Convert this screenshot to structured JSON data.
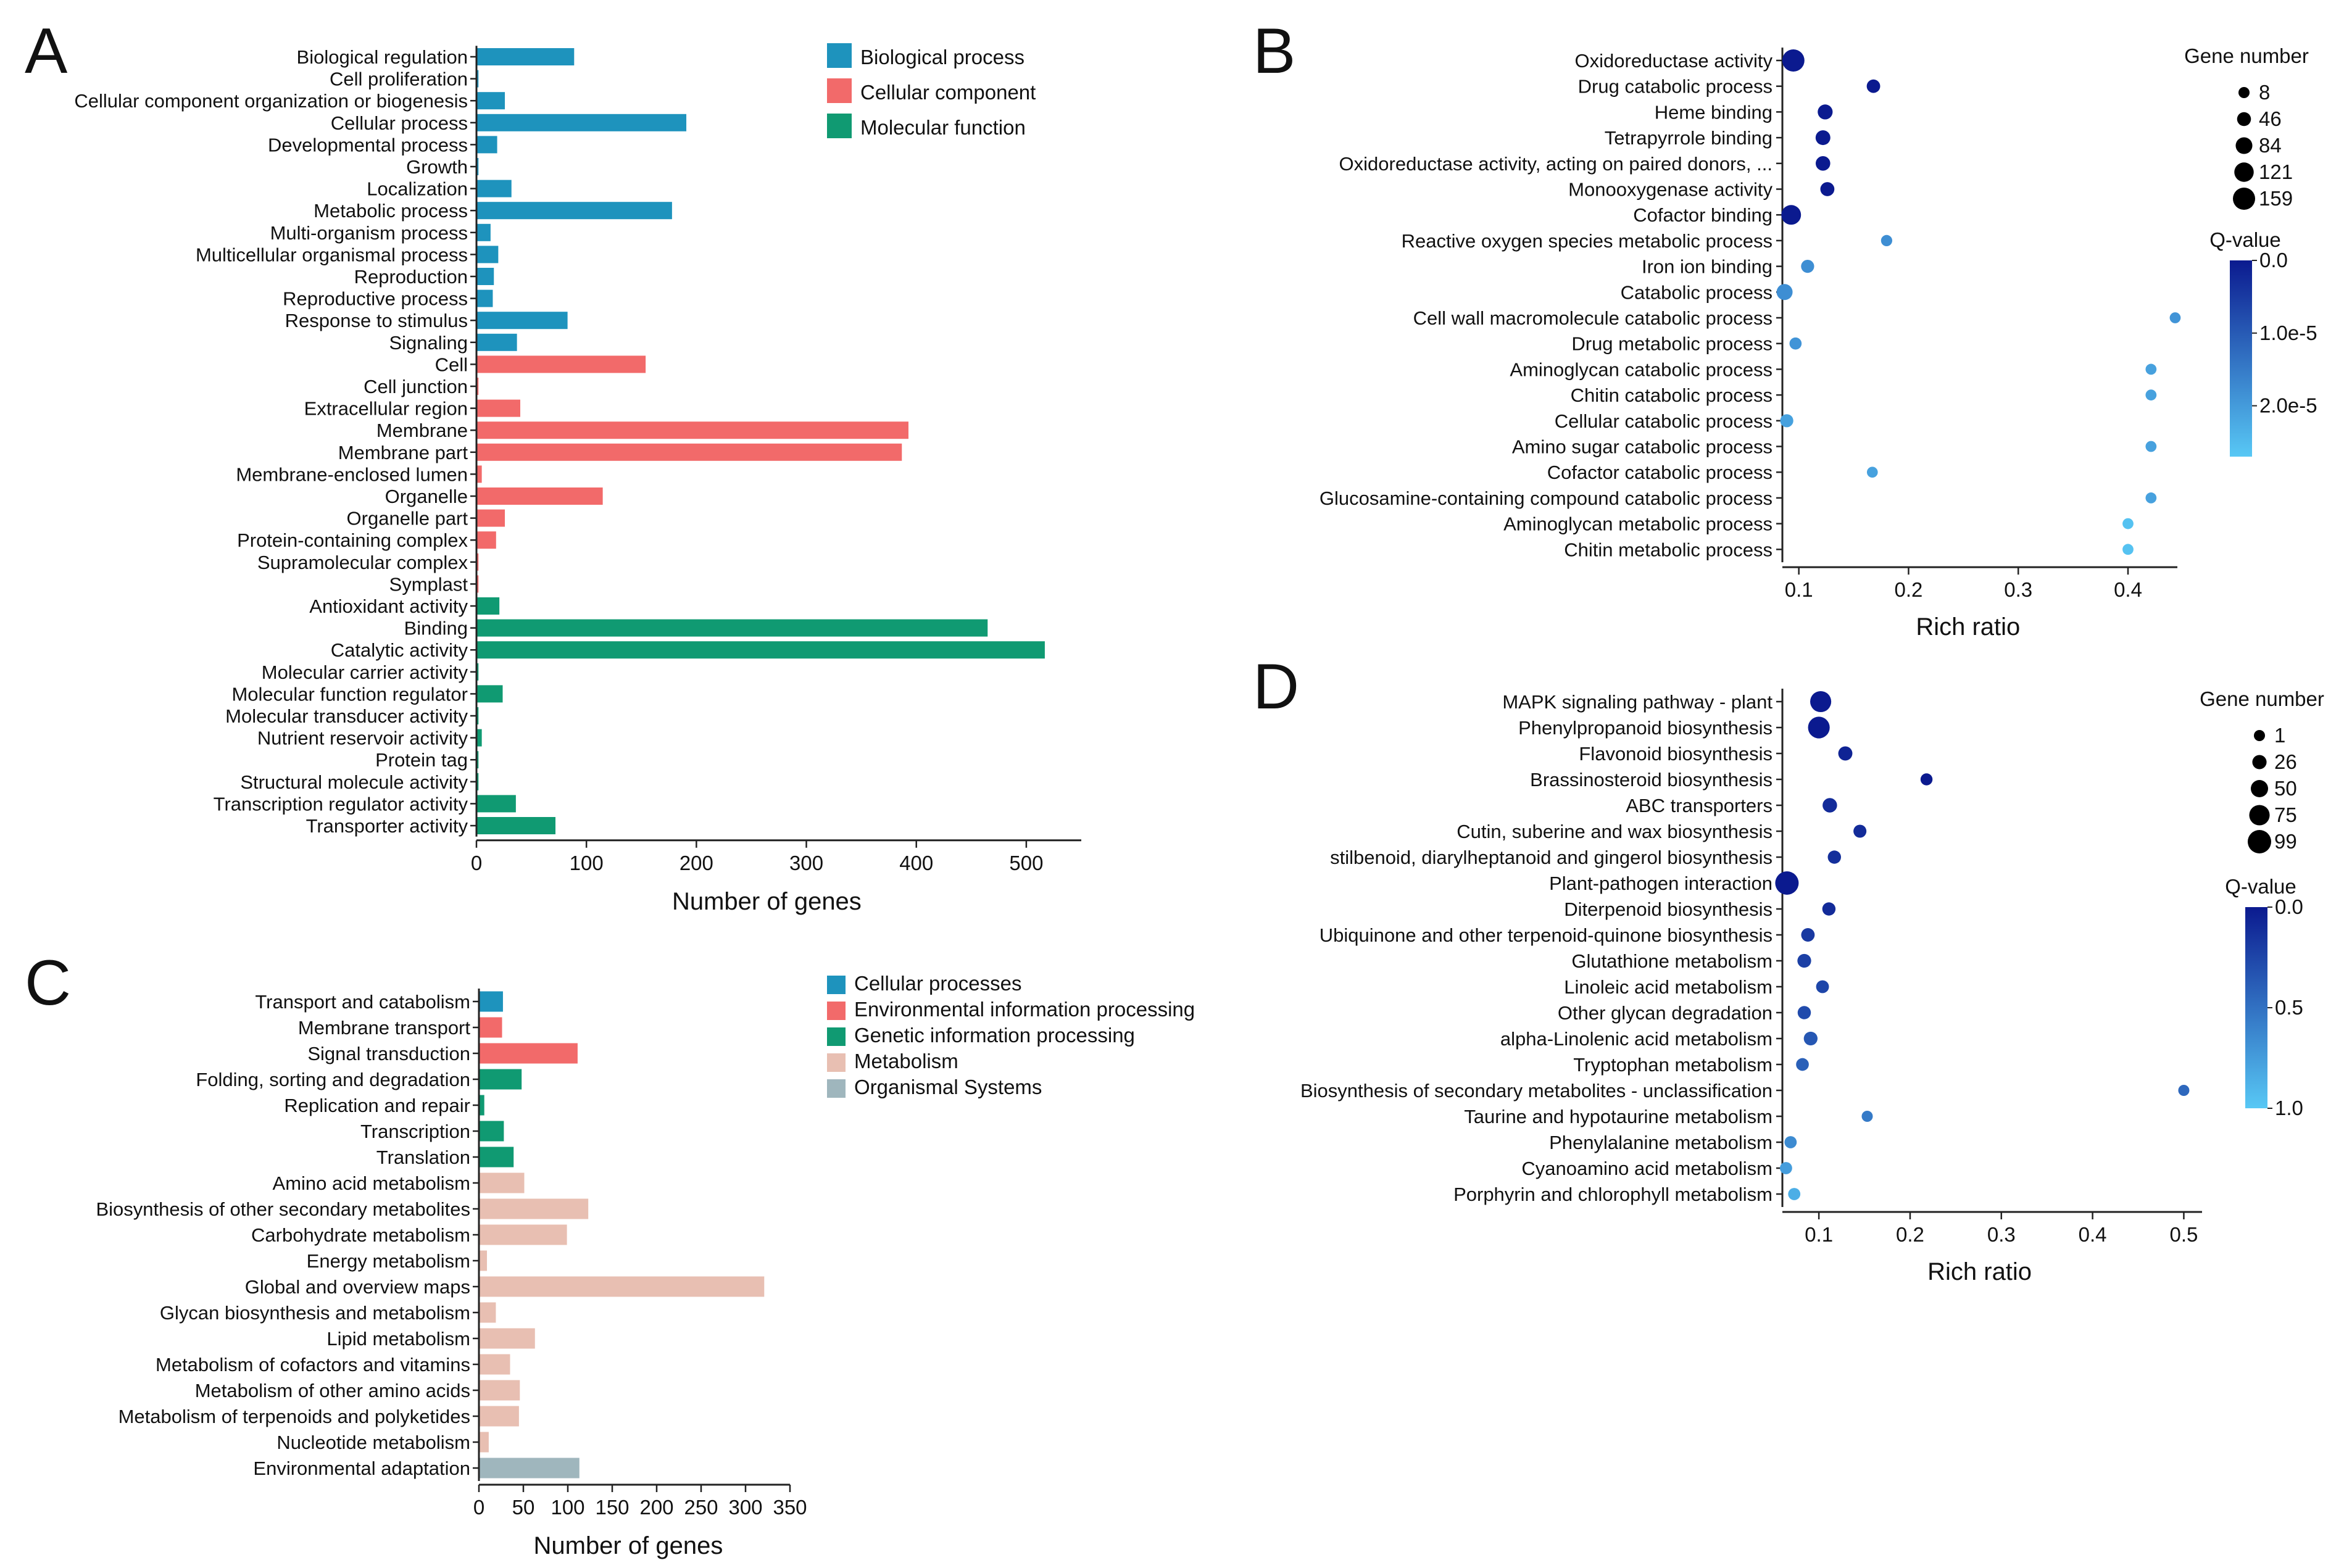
{
  "colors": {
    "blue": "#1e93bd",
    "red": "#f26a6a",
    "green": "#109a72",
    "metab": "#e8bfb2",
    "gray": "#9fb6bd",
    "qdark": "#0b1a8f",
    "qlight": "#58c8f5"
  },
  "chart_data": [
    {
      "panel": "A",
      "type": "bar",
      "orientation": "horizontal",
      "xlabel": "Number of genes",
      "xlim": [
        0,
        550
      ],
      "xticks": [
        "0",
        "100",
        "200",
        "300",
        "400",
        "500"
      ],
      "legend": [
        {
          "label": "Biological process",
          "color": "#1e93bd"
        },
        {
          "label": "Cellular component",
          "color": "#f26a6a"
        },
        {
          "label": "Molecular function",
          "color": "#109a72"
        }
      ],
      "categories": [
        "Biological regulation",
        "Cell proliferation",
        "Cellular component organization or biogenesis",
        "Cellular process",
        "Developmental process",
        "Growth",
        "Localization",
        "Metabolic process",
        "Multi-organism process",
        "Multicellular organismal process",
        "Reproduction",
        "Reproductive process",
        "Response to stimulus",
        "Signaling",
        "Cell",
        "Cell junction",
        "Extracellular region",
        "Membrane",
        "Membrane part",
        "Membrane-enclosed lumen",
        "Organelle",
        "Organelle part",
        "Protein-containing complex",
        "Supramolecular complex",
        "Symplast",
        "Antioxidant activity",
        "Binding",
        "Catalytic activity",
        "Molecular carrier activity",
        "Molecular function regulator",
        "Molecular transducer activity",
        "Nutrient reservoir activity",
        "Protein tag",
        "Structural molecule activity",
        "Transcription regulator activity",
        "Transporter activity"
      ],
      "values": [
        88,
        1,
        25,
        190,
        18,
        1,
        31,
        177,
        12,
        19,
        15,
        14,
        82,
        36,
        153,
        1,
        39,
        392,
        386,
        4,
        114,
        25,
        17,
        1,
        1,
        20,
        464,
        516,
        1,
        23,
        1,
        4,
        1,
        1,
        35,
        71
      ],
      "groups": [
        0,
        0,
        0,
        0,
        0,
        0,
        0,
        0,
        0,
        0,
        0,
        0,
        0,
        0,
        1,
        1,
        1,
        1,
        1,
        1,
        1,
        1,
        1,
        1,
        1,
        2,
        2,
        2,
        2,
        2,
        2,
        2,
        2,
        2,
        2,
        2
      ]
    },
    {
      "panel": "B",
      "type": "scatter",
      "xlabel": "Rich ratio",
      "xlim": [
        0.085,
        0.445
      ],
      "xticks": [
        0.1,
        0.2,
        0.3,
        0.4
      ],
      "size_legend_title": "Gene number",
      "size_legend": [
        8,
        46,
        84,
        121,
        159
      ],
      "size_range": [
        8,
        159
      ],
      "color_legend_title": "Q-value",
      "color_ticks": [
        "0.0",
        "1.0e-5",
        "2.0e-5"
      ],
      "color_max": 2.7e-05,
      "categories": [
        "Oxidoreductase activity",
        "Drug catabolic process",
        "Heme binding",
        "Tetrapyrrole binding",
        "Oxidoreductase activity, acting on paired donors, ...",
        "Monooxygenase activity",
        "Cofactor binding",
        "Reactive oxygen species metabolic process",
        "Iron ion binding",
        "Catabolic process",
        "Cell wall macromolecule catabolic process",
        "Drug metabolic process",
        "Aminoglycan catabolic process",
        "Chitin catabolic process",
        "Cellular catabolic process",
        "Amino sugar catabolic process",
        "Cofactor catabolic process",
        "Glucosamine-containing compound catabolic process",
        "Aminoglycan metabolic process",
        "Chitin metabolic process"
      ],
      "x": [
        0.095,
        0.168,
        0.124,
        0.122,
        0.122,
        0.126,
        0.093,
        0.18,
        0.108,
        0.087,
        0.443,
        0.097,
        0.421,
        0.421,
        0.089,
        0.421,
        0.167,
        0.421,
        0.4,
        0.4
      ],
      "gene_number": [
        159,
        40,
        60,
        58,
        55,
        48,
        125,
        10,
        35,
        75,
        6,
        22,
        6,
        6,
        35,
        6,
        5,
        6,
        6,
        6
      ],
      "q_value": [
        0,
        0,
        0,
        0,
        0,
        0,
        0,
        1.8e-05,
        1.8e-05,
        1.8e-05,
        1.9e-05,
        1.9e-05,
        2.1e-05,
        2.1e-05,
        2.1e-05,
        2.1e-05,
        2.1e-05,
        2.1e-05,
        2.6e-05,
        2.6e-05
      ]
    },
    {
      "panel": "C",
      "type": "bar",
      "orientation": "horizontal",
      "xlabel": "Number of genes",
      "xlim": [
        0,
        350
      ],
      "xticks": [
        "0",
        "50",
        "100",
        "150",
        "200",
        "250",
        "300",
        "350"
      ],
      "legend": [
        {
          "label": "Cellular processes",
          "color": "#1e93bd"
        },
        {
          "label": "Environmental information processing",
          "color": "#f26a6a"
        },
        {
          "label": "Genetic information processing",
          "color": "#109a72"
        },
        {
          "label": "Metabolism",
          "color": "#e8bfb2"
        },
        {
          "label": "Organismal Systems",
          "color": "#9fb6bd"
        }
      ],
      "categories": [
        "Transport and catabolism",
        "Membrane transport",
        "Signal transduction",
        "Folding, sorting and degradation",
        "Replication and repair",
        "Transcription",
        "Translation",
        "Amino acid metabolism",
        "Biosynthesis of other secondary metabolites",
        "Carbohydrate metabolism",
        "Energy metabolism",
        "Global and overview maps",
        "Glycan biosynthesis and metabolism",
        "Lipid metabolism",
        "Metabolism of cofactors and vitamins",
        "Metabolism of other amino acids",
        "Metabolism of terpenoids and polyketides",
        "Nucleotide metabolism",
        "Environmental adaptation"
      ],
      "values": [
        26,
        25,
        110,
        47,
        5,
        27,
        38,
        50,
        122,
        98,
        8,
        320,
        18,
        62,
        34,
        45,
        44,
        10,
        112
      ],
      "groups": [
        0,
        1,
        1,
        2,
        2,
        2,
        2,
        3,
        3,
        3,
        3,
        3,
        3,
        3,
        3,
        3,
        3,
        3,
        4
      ]
    },
    {
      "panel": "D",
      "type": "scatter",
      "xlabel": "Rich ratio",
      "xlim": [
        0.06,
        0.52
      ],
      "xticks": [
        0.1,
        0.2,
        0.3,
        0.4,
        0.5
      ],
      "size_legend_title": "Gene number",
      "size_legend": [
        1,
        26,
        50,
        75,
        99
      ],
      "size_range": [
        1,
        99
      ],
      "color_legend_title": "Q-value",
      "color_ticks": [
        "0.0",
        "0.5",
        "1.0"
      ],
      "color_max": 1.0,
      "categories": [
        "MAPK signaling pathway - plant",
        "Phenylpropanoid biosynthesis",
        "Flavonoid biosynthesis",
        "Brassinosteroid biosynthesis",
        "ABC transporters",
        "Cutin, suberine and wax biosynthesis",
        "stilbenoid, diarylheptanoid and gingerol biosynthesis",
        "Plant-pathogen interaction",
        "Diterpenoid biosynthesis",
        "Ubiquinone and other terpenoid-quinone biosynthesis",
        "Glutathione metabolism",
        "Linoleic acid metabolism",
        "Other glycan degradation",
        "alpha-Linolenic acid metabolism",
        "Tryptophan metabolism",
        "Biosynthesis of secondary metabolites - unclassification",
        "Taurine and hypotaurine metabolism",
        "Phenylalanine metabolism",
        "Cyanoamino acid metabolism",
        "Porphyrin and chlorophyll metabolism"
      ],
      "x": [
        0.102,
        0.1,
        0.129,
        0.218,
        0.112,
        0.145,
        0.117,
        0.065,
        0.111,
        0.088,
        0.084,
        0.104,
        0.084,
        0.091,
        0.082,
        0.5,
        0.153,
        0.069,
        0.064,
        0.073
      ],
      "gene_number": [
        80,
        85,
        25,
        8,
        28,
        16,
        18,
        99,
        18,
        20,
        22,
        15,
        18,
        22,
        14,
        1,
        1,
        10,
        10,
        10
      ],
      "q_value": [
        0.0,
        0.0,
        0.05,
        0.0,
        0.1,
        0.1,
        0.12,
        0.0,
        0.1,
        0.18,
        0.22,
        0.25,
        0.28,
        0.35,
        0.4,
        0.45,
        0.55,
        0.65,
        0.75,
        0.85
      ]
    }
  ]
}
